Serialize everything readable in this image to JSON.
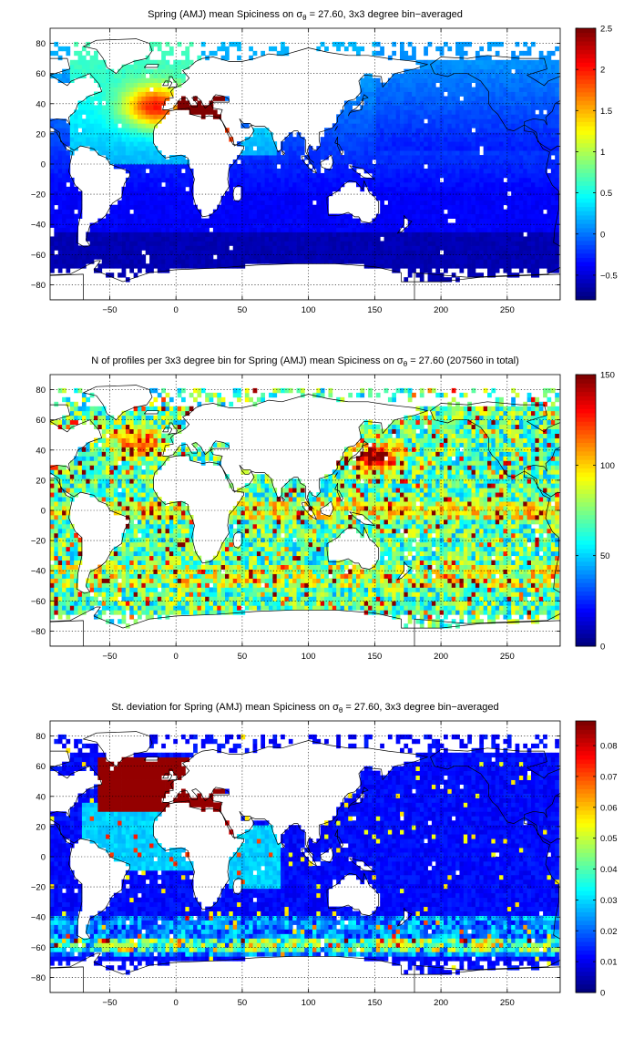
{
  "colors": {
    "background": "#ffffff",
    "land": "#ffffff",
    "coastline": "#000000",
    "colormap": "jet"
  },
  "map_panels": [
    {
      "title_pre": "Spring (AMJ) mean Spiciness on σ",
      "title_sub": "θ",
      "title_post": " = 27.60, 3x3 degree bin−averaged",
      "field": "mean spiciness",
      "xlim": [
        -95,
        290
      ],
      "ylim": [
        -90,
        90
      ],
      "xticks": [
        "−50",
        "0",
        "50",
        "100",
        "150",
        "200",
        "250"
      ],
      "yticks": [
        "80",
        "60",
        "40",
        "20",
        "0",
        "−20",
        "−40",
        "−60",
        "−80"
      ],
      "colorbar": {
        "min": -0.8,
        "max": 2.5,
        "ticks": [
          "2.5",
          "2",
          "1.5",
          "1",
          "0.5",
          "0",
          "−0.5"
        ]
      }
    },
    {
      "title_pre": "N of profiles per 3x3 degree bin for Spring (AMJ) mean Spiciness on σ",
      "title_sub": "θ",
      "title_post": " = 27.60 (207560 in total)",
      "field": "profile count",
      "xlim": [
        -95,
        290
      ],
      "ylim": [
        -90,
        90
      ],
      "xticks": [
        "−50",
        "0",
        "50",
        "100",
        "150",
        "200",
        "250"
      ],
      "yticks": [
        "80",
        "60",
        "40",
        "20",
        "0",
        "−20",
        "−40",
        "−60",
        "−80"
      ],
      "colorbar": {
        "min": 0,
        "max": 150,
        "ticks": [
          "150",
          "100",
          "50",
          "0"
        ]
      }
    },
    {
      "title_pre": "St. deviation for Spring (AMJ) mean Spiciness on σ",
      "title_sub": "θ",
      "title_post": " = 27.60, 3x3 degree bin−averaged",
      "field": "standard deviation",
      "xlim": [
        -95,
        290
      ],
      "ylim": [
        -90,
        90
      ],
      "xticks": [
        "−50",
        "0",
        "50",
        "100",
        "150",
        "200",
        "250"
      ],
      "yticks": [
        "80",
        "60",
        "40",
        "20",
        "0",
        "−20",
        "−40",
        "−60",
        "−80"
      ],
      "colorbar": {
        "min": 0,
        "max": 0.088,
        "ticks": [
          "0.08",
          "0.07",
          "0.06",
          "0.05",
          "0.04",
          "0.03",
          "0.02",
          "0.01",
          "0"
        ]
      }
    }
  ]
}
